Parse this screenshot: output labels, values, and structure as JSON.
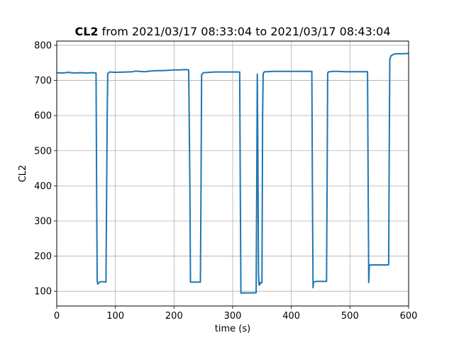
{
  "chart_data": {
    "type": "line",
    "title_bold": "CL2",
    "title_rest": " from 2021/03/17 08:33:04 to 2021/03/17 08:43:04",
    "xlabel": "time (s)",
    "ylabel": "CL2",
    "xlim": [
      0,
      600
    ],
    "ylim": [
      58,
      812
    ],
    "xticks": [
      0,
      100,
      200,
      300,
      400,
      500,
      600
    ],
    "yticks": [
      100,
      200,
      300,
      400,
      500,
      600,
      700,
      800
    ],
    "grid": true,
    "series": [
      {
        "color": "#1f77b4",
        "x": [
          0,
          10,
          20,
          30,
          40,
          50,
          60,
          67,
          68,
          69,
          70,
          72,
          75,
          80,
          84,
          86,
          87,
          90,
          100,
          120,
          130,
          135,
          140,
          150,
          160,
          170,
          180,
          190,
          200,
          210,
          220,
          225,
          227,
          228,
          229,
          232,
          240,
          245,
          246,
          247,
          250,
          260,
          270,
          280,
          290,
          300,
          310,
          312,
          313,
          314,
          320,
          330,
          340,
          341,
          342,
          343,
          344,
          345,
          346,
          347,
          348,
          350,
          351,
          352,
          353,
          354,
          355,
          360,
          370,
          380,
          390,
          400,
          410,
          420,
          430,
          435,
          436,
          437,
          438,
          440,
          442,
          450,
          455,
          460,
          461,
          462,
          463,
          470,
          480,
          490,
          500,
          510,
          520,
          530,
          531,
          532,
          533,
          534,
          535,
          540,
          550,
          560,
          565,
          566,
          567,
          568,
          570,
          575,
          580,
          590,
          600
        ],
        "y": [
          722,
          721,
          723,
          721,
          722,
          721,
          722,
          721,
          400,
          130,
          120,
          125,
          127,
          127,
          126,
          600,
          720,
          724,
          723,
          724,
          725,
          727,
          726,
          725,
          727,
          728,
          728,
          729,
          730,
          730,
          731,
          730,
          400,
          126,
          126,
          126,
          126,
          126,
          400,
          716,
          722,
          723,
          724,
          724,
          724,
          724,
          724,
          724,
          400,
          95,
          95,
          95,
          96,
          400,
          718,
          500,
          150,
          118,
          118,
          125,
          123,
          125,
          600,
          720,
          722,
          724,
          725,
          725,
          726,
          726,
          726,
          726,
          726,
          726,
          726,
          726,
          400,
          110,
          126,
          127,
          128,
          128,
          128,
          128,
          400,
          720,
          724,
          726,
          726,
          725,
          725,
          725,
          725,
          725,
          400,
          125,
          170,
          175,
          175,
          175,
          175,
          175,
          175,
          176,
          500,
          760,
          770,
          775,
          776,
          776,
          777
        ]
      }
    ]
  }
}
